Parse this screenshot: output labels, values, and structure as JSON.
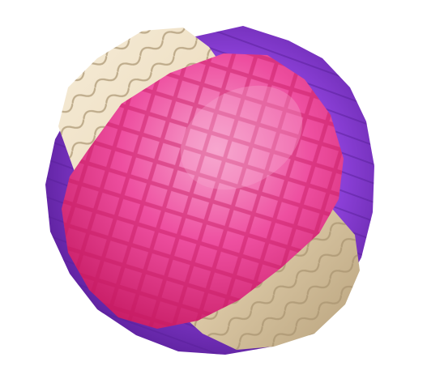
{
  "scene": {
    "object": "yarn-ball",
    "colors": {
      "background": "#ffffff",
      "purple_wrap": "#8a3fd6",
      "purple_dark": "#5a1f9a",
      "purple_light": "#b07aee",
      "cream_wrap": "#e9d7b6",
      "cream_dark": "#a8936f",
      "cream_light": "#f6ecd8",
      "pink_wrap": "#ee4fa0",
      "pink_dark": "#c4175f",
      "pink_light": "#f7a7cf"
    }
  }
}
